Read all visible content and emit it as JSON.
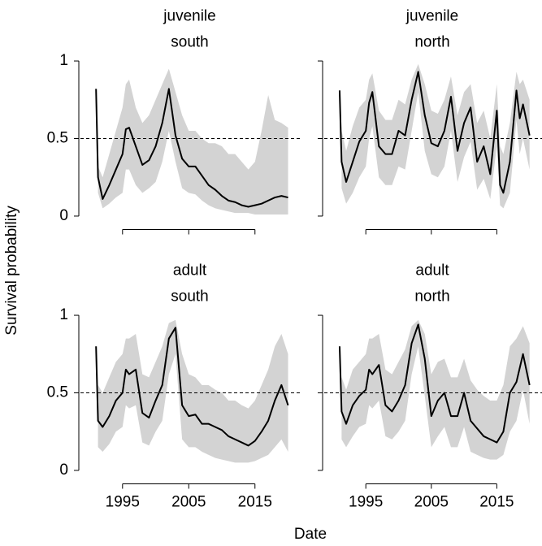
{
  "y_label": "Survival probability",
  "x_label": "Date",
  "chart_data": [
    {
      "type": "line",
      "title": "juvenile",
      "subtitle": "south",
      "xlim": [
        1988.4,
        2021.9
      ],
      "ylim": [
        -0.05,
        1.05
      ],
      "xticks": [
        1995,
        2005,
        2015
      ],
      "yticks": [
        0,
        0.5,
        1
      ],
      "hline": 0.5,
      "band_color": "#d3d3d3",
      "x": [
        1991,
        1991.3,
        1992,
        1993,
        1994,
        1995,
        1995.5,
        1996,
        1997,
        1998,
        1999,
        2000,
        2001,
        2002,
        2003,
        2004,
        2005,
        2006,
        2007,
        2008,
        2009,
        2010,
        2011,
        2012,
        2013,
        2014,
        2015,
        2016,
        2017,
        2018,
        2019,
        2020
      ],
      "series": [
        {
          "color": "#000000",
          "values": [
            0.82,
            0.25,
            0.11,
            0.2,
            0.3,
            0.4,
            0.56,
            0.57,
            0.45,
            0.33,
            0.36,
            0.45,
            0.6,
            0.82,
            0.52,
            0.37,
            0.32,
            0.32,
            0.26,
            0.2,
            0.17,
            0.13,
            0.1,
            0.09,
            0.07,
            0.06,
            0.07,
            0.08,
            0.1,
            0.12,
            0.13,
            0.12
          ],
          "upper": [
            null,
            0.32,
            0.25,
            0.4,
            0.55,
            0.7,
            0.85,
            0.88,
            0.7,
            0.6,
            0.65,
            0.75,
            0.85,
            0.95,
            0.8,
            0.65,
            0.55,
            0.55,
            0.5,
            0.47,
            0.47,
            0.45,
            0.4,
            0.4,
            0.35,
            0.3,
            0.35,
            0.55,
            0.78,
            0.62,
            0.6,
            0.57
          ],
          "lower": [
            null,
            0.15,
            0.05,
            0.08,
            0.12,
            0.15,
            0.3,
            0.3,
            0.2,
            0.15,
            0.18,
            0.22,
            0.35,
            0.55,
            0.35,
            0.18,
            0.15,
            0.14,
            0.1,
            0.07,
            0.05,
            0.04,
            0.03,
            0.02,
            0.02,
            0.02,
            0.01,
            0.01,
            0.01,
            0.01,
            0.01,
            0.01
          ]
        }
      ]
    },
    {
      "type": "line",
      "title": "juvenile",
      "subtitle": "north",
      "xlim": [
        1988.4,
        2021.9
      ],
      "ylim": [
        -0.05,
        1.05
      ],
      "xticks": [
        1995,
        2005,
        2015
      ],
      "yticks": [
        0,
        0.5,
        1
      ],
      "hline": 0.5,
      "band_color": "#d3d3d3",
      "x": [
        1991,
        1991.3,
        1992,
        1993,
        1994,
        1995,
        1995.5,
        1996,
        1997,
        1998,
        1999,
        2000,
        2001,
        2002,
        2003,
        2004,
        2005,
        2006,
        2007,
        2008,
        2009,
        2010,
        2011,
        2012,
        2013,
        2014,
        2015,
        2015.5,
        2016,
        2017,
        2018,
        2018.5,
        2019,
        2020
      ],
      "series": [
        {
          "color": "#000000",
          "values": [
            0.81,
            0.35,
            0.22,
            0.35,
            0.48,
            0.55,
            0.73,
            0.8,
            0.45,
            0.4,
            0.4,
            0.55,
            0.52,
            0.75,
            0.93,
            0.65,
            0.47,
            0.45,
            0.55,
            0.77,
            0.42,
            0.6,
            0.7,
            0.35,
            0.45,
            0.27,
            0.68,
            0.2,
            0.15,
            0.35,
            0.81,
            0.63,
            0.72,
            0.52
          ],
          "upper": [
            null,
            0.55,
            0.42,
            0.58,
            0.7,
            0.75,
            0.88,
            0.92,
            0.68,
            0.62,
            0.62,
            0.75,
            0.72,
            0.88,
            0.98,
            0.85,
            0.68,
            0.66,
            0.75,
            0.9,
            0.65,
            0.8,
            0.85,
            0.6,
            0.68,
            0.5,
            0.85,
            0.45,
            0.4,
            0.6,
            0.93,
            0.85,
            0.88,
            0.75
          ],
          "lower": [
            null,
            0.18,
            0.08,
            0.15,
            0.25,
            0.32,
            0.5,
            0.58,
            0.25,
            0.2,
            0.2,
            0.32,
            0.3,
            0.55,
            0.8,
            0.42,
            0.27,
            0.25,
            0.32,
            0.55,
            0.22,
            0.38,
            0.48,
            0.17,
            0.24,
            0.11,
            0.45,
            0.07,
            0.05,
            0.15,
            0.62,
            0.4,
            0.5,
            0.3
          ]
        }
      ]
    },
    {
      "type": "line",
      "title": "adult",
      "subtitle": "south",
      "xlim": [
        1988.4,
        2021.9
      ],
      "ylim": [
        -0.05,
        1.05
      ],
      "xticks": [
        1995,
        2005,
        2015
      ],
      "yticks": [
        0,
        0.5,
        1
      ],
      "hline": 0.5,
      "band_color": "#d3d3d3",
      "x": [
        1991,
        1991.3,
        1992,
        1993,
        1994,
        1995,
        1995.5,
        1996,
        1997,
        1998,
        1999,
        2000,
        2001,
        2002,
        2003,
        2004,
        2005,
        2006,
        2007,
        2008,
        2009,
        2010,
        2011,
        2012,
        2013,
        2014,
        2015,
        2016,
        2017,
        2018,
        2019,
        2020
      ],
      "series": [
        {
          "color": "#000000",
          "values": [
            0.8,
            0.32,
            0.28,
            0.35,
            0.45,
            0.5,
            0.65,
            0.62,
            0.65,
            0.37,
            0.34,
            0.45,
            0.55,
            0.85,
            0.92,
            0.42,
            0.35,
            0.36,
            0.3,
            0.3,
            0.28,
            0.26,
            0.22,
            0.2,
            0.18,
            0.16,
            0.19,
            0.25,
            0.32,
            0.45,
            0.55,
            0.42
          ],
          "upper": [
            null,
            0.55,
            0.5,
            0.6,
            0.7,
            0.75,
            0.85,
            0.85,
            0.88,
            0.62,
            0.6,
            0.7,
            0.8,
            0.95,
            0.97,
            0.75,
            0.62,
            0.6,
            0.55,
            0.55,
            0.52,
            0.5,
            0.45,
            0.45,
            0.42,
            0.4,
            0.45,
            0.55,
            0.65,
            0.8,
            0.88,
            0.75
          ],
          "lower": [
            null,
            0.15,
            0.12,
            0.17,
            0.25,
            0.28,
            0.42,
            0.4,
            0.42,
            0.18,
            0.16,
            0.25,
            0.32,
            0.62,
            0.75,
            0.2,
            0.15,
            0.15,
            0.12,
            0.1,
            0.08,
            0.07,
            0.06,
            0.05,
            0.05,
            0.05,
            0.06,
            0.08,
            0.1,
            0.15,
            0.2,
            0.12
          ]
        }
      ]
    },
    {
      "type": "line",
      "title": "adult",
      "subtitle": "north",
      "xlim": [
        1988.4,
        2021.9
      ],
      "ylim": [
        -0.05,
        1.05
      ],
      "xticks": [
        1995,
        2005,
        2015
      ],
      "yticks": [
        0,
        0.5,
        1
      ],
      "hline": 0.5,
      "band_color": "#d3d3d3",
      "x": [
        1991,
        1991.3,
        1992,
        1993,
        1994,
        1995,
        1995.5,
        1996,
        1997,
        1998,
        1999,
        2000,
        2001,
        2002,
        2003,
        2004,
        2005,
        2006,
        2007,
        2008,
        2009,
        2010,
        2011,
        2012,
        2013,
        2014,
        2015,
        2016,
        2017,
        2018,
        2019,
        2020
      ],
      "series": [
        {
          "color": "#000000",
          "values": [
            0.8,
            0.38,
            0.3,
            0.42,
            0.48,
            0.52,
            0.65,
            0.62,
            0.68,
            0.42,
            0.38,
            0.45,
            0.55,
            0.82,
            0.94,
            0.72,
            0.35,
            0.45,
            0.5,
            0.35,
            0.35,
            0.5,
            0.32,
            0.27,
            0.22,
            0.2,
            0.18,
            0.25,
            0.5,
            0.57,
            0.75,
            0.55
          ],
          "upper": [
            null,
            0.6,
            0.52,
            0.65,
            0.7,
            0.75,
            0.85,
            0.85,
            0.88,
            0.65,
            0.62,
            0.7,
            0.78,
            0.93,
            0.97,
            0.88,
            0.62,
            0.7,
            0.72,
            0.6,
            0.6,
            0.72,
            0.58,
            0.52,
            0.48,
            0.45,
            0.45,
            0.55,
            0.8,
            0.85,
            0.93,
            0.82
          ],
          "lower": [
            null,
            0.2,
            0.15,
            0.22,
            0.28,
            0.3,
            0.42,
            0.4,
            0.45,
            0.22,
            0.2,
            0.25,
            0.32,
            0.62,
            0.8,
            0.48,
            0.15,
            0.22,
            0.28,
            0.15,
            0.15,
            0.28,
            0.12,
            0.1,
            0.08,
            0.07,
            0.07,
            0.1,
            0.25,
            0.32,
            0.52,
            0.3
          ]
        }
      ]
    }
  ]
}
